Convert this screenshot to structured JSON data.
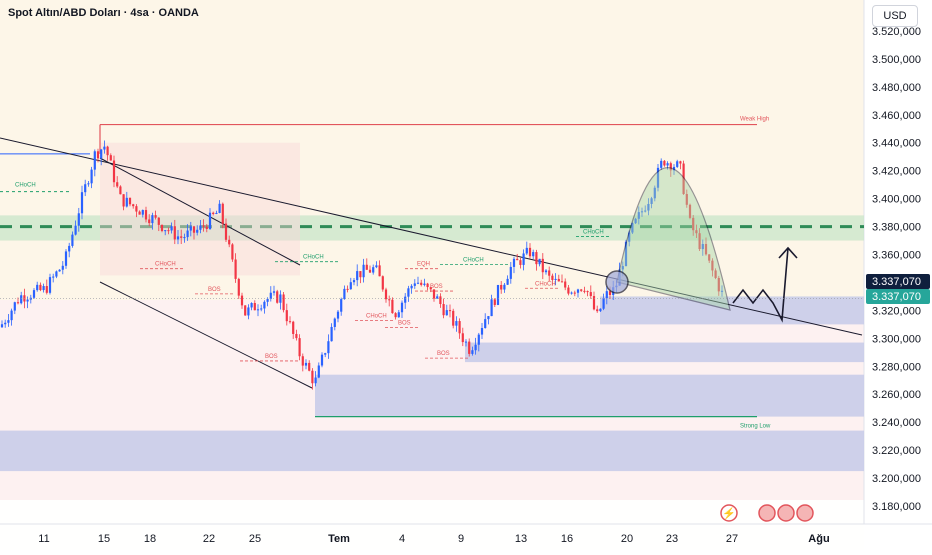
{
  "header": {
    "title": "Spot Altın/ABD Doları · 4sa · OANDA",
    "currency_button": "USD"
  },
  "colors": {
    "bull": "#2962ff",
    "bear": "#f23645",
    "weak_high": "#e2555c",
    "strong_low": "#1e9e6b",
    "zone_green": "#c8e6c9",
    "zone_blue": "#c5cae9",
    "price_tag": "#26a69a"
  },
  "chart_data": {
    "type": "candlestick",
    "ylim": [
      3170,
      3535
    ],
    "y_ticks": [
      3180,
      3200,
      3220,
      3240,
      3260,
      3280,
      3300,
      3320,
      3340,
      3360,
      3380,
      3400,
      3420,
      3440,
      3460,
      3480,
      3500,
      3520
    ],
    "y_tick_labels": [
      "3.180,000",
      "3.200,000",
      "3.220,000",
      "3.240,000",
      "3.260,000",
      "3.280,000",
      "3.300,000",
      "3.320,000",
      "3.340,000",
      "3.360,000",
      "3.380,000",
      "3.400,000",
      "3.420,000",
      "3.440,000",
      "3.460,000",
      "3.480,000",
      "3.500,000",
      "3.520,000"
    ],
    "x_labels": [
      "11",
      "15",
      "18",
      "22",
      "25",
      "Tem",
      "4",
      "9",
      "13",
      "16",
      "20",
      "23",
      "27",
      "Ağu"
    ],
    "last_price": 3337.07,
    "last_price_labels": [
      "3.337,070",
      "3.337,070"
    ],
    "price_path": [
      [
        0,
        3308
      ],
      [
        20,
        3330
      ],
      [
        45,
        3335
      ],
      [
        65,
        3355
      ],
      [
        80,
        3395
      ],
      [
        95,
        3432
      ],
      [
        105,
        3438
      ],
      [
        120,
        3400
      ],
      [
        140,
        3392
      ],
      [
        160,
        3382
      ],
      [
        180,
        3372
      ],
      [
        200,
        3378
      ],
      [
        220,
        3392
      ],
      [
        235,
        3345
      ],
      [
        245,
        3318
      ],
      [
        265,
        3328
      ],
      [
        280,
        3330
      ],
      [
        300,
        3288
      ],
      [
        315,
        3268
      ],
      [
        335,
        3315
      ],
      [
        350,
        3345
      ],
      [
        375,
        3350
      ],
      [
        395,
        3318
      ],
      [
        415,
        3342
      ],
      [
        435,
        3330
      ],
      [
        455,
        3310
      ],
      [
        470,
        3292
      ],
      [
        490,
        3322
      ],
      [
        510,
        3350
      ],
      [
        530,
        3362
      ],
      [
        550,
        3342
      ],
      [
        570,
        3335
      ],
      [
        585,
        3338
      ],
      [
        597,
        3315
      ],
      [
        605,
        3330
      ],
      [
        615,
        3335
      ],
      [
        630,
        3375
      ],
      [
        650,
        3402
      ],
      [
        663,
        3428
      ],
      [
        680,
        3422
      ],
      [
        690,
        3382
      ],
      [
        705,
        3360
      ],
      [
        725,
        3327
      ]
    ],
    "annotations": {
      "weak_high_label": "Weak High",
      "weak_high_price": 3453,
      "strong_low_label": "Strong Low",
      "strong_low_price": 3244,
      "choch_labels": [
        "CHoCH",
        "CHoCH",
        "CHoCH",
        "CHoCH",
        "CHoCH",
        "CHoCH"
      ],
      "bos_labels": [
        "BOS",
        "BOS",
        "BOS",
        "BOS",
        "BOS"
      ],
      "eqh_label": "EQH",
      "choch_left_label": "CHoCH"
    }
  }
}
